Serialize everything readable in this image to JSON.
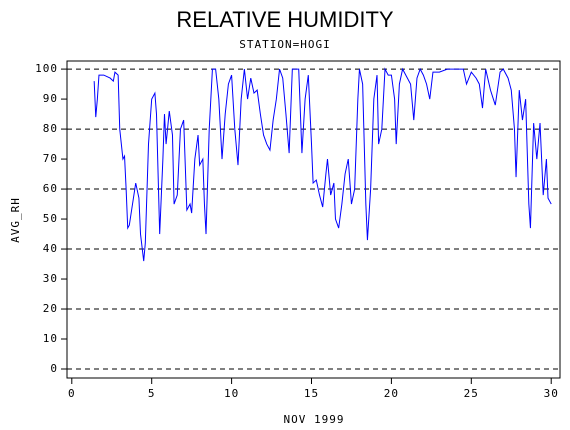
{
  "chart_data": {
    "type": "line",
    "title": "RELATIVE HUMIDITY",
    "subtitle": "STATION=HOGI",
    "x_label": "NOV 1999",
    "y_label": "AVG_RH",
    "xlim": [
      -0.3,
      30.55
    ],
    "ylim": [
      -3,
      102.7
    ],
    "xticks": [
      0,
      5,
      10,
      15,
      20,
      25,
      30
    ],
    "yticks": [
      0,
      10,
      20,
      30,
      40,
      50,
      60,
      70,
      80,
      90,
      100
    ],
    "reference_lines": [
      0,
      20,
      40,
      60,
      80,
      100
    ],
    "x": [
      1.4,
      1.5,
      1.6,
      1.7,
      2.0,
      2.4,
      2.6,
      2.7,
      2.9,
      3.0,
      3.2,
      3.3,
      3.4,
      3.5,
      3.6,
      3.8,
      4.0,
      4.2,
      4.3,
      4.5,
      4.6,
      4.8,
      5.0,
      5.2,
      5.3,
      5.5,
      5.7,
      5.8,
      5.9,
      6.1,
      6.3,
      6.4,
      6.6,
      6.8,
      7.0,
      7.2,
      7.4,
      7.5,
      7.7,
      7.9,
      8.0,
      8.2,
      8.3,
      8.4,
      8.6,
      8.8,
      9.0,
      9.2,
      9.4,
      9.6,
      9.8,
      10.0,
      10.2,
      10.4,
      10.6,
      10.8,
      11.0,
      11.2,
      11.4,
      11.6,
      11.8,
      12.0,
      12.2,
      12.4,
      12.6,
      12.8,
      13.0,
      13.2,
      13.4,
      13.6,
      13.8,
      14.0,
      14.2,
      14.4,
      14.6,
      14.8,
      15.0,
      15.1,
      15.3,
      15.5,
      15.7,
      15.9,
      16.0,
      16.2,
      16.4,
      16.5,
      16.7,
      16.9,
      17.1,
      17.3,
      17.5,
      17.7,
      17.9,
      18.0,
      18.2,
      18.4,
      18.5,
      18.7,
      18.9,
      19.1,
      19.2,
      19.4,
      19.6,
      19.8,
      20.0,
      20.2,
      20.3,
      20.5,
      20.7,
      21.0,
      21.2,
      21.4,
      21.6,
      21.8,
      22.0,
      22.2,
      22.4,
      22.6,
      23.0,
      23.5,
      24.0,
      24.5,
      24.7,
      25.0,
      25.3,
      25.5,
      25.7,
      25.9,
      26.2,
      26.5,
      26.8,
      27.0,
      27.3,
      27.5,
      27.7,
      27.8,
      28.0,
      28.2,
      28.4,
      28.6,
      28.7,
      28.9,
      29.1,
      29.3,
      29.5,
      29.7,
      29.8,
      30.0
    ],
    "series": [
      {
        "name": "AVG_RH",
        "color": "#0000ff",
        "values": [
          96,
          84,
          90,
          98,
          98,
          97,
          96,
          99,
          98,
          80,
          70,
          71,
          60,
          47,
          48,
          55,
          62,
          57,
          45,
          36,
          42,
          75,
          90,
          92,
          85,
          45,
          70,
          85,
          75,
          86,
          78,
          55,
          58,
          80,
          83,
          53,
          55,
          52,
          70,
          78,
          68,
          70,
          55,
          45,
          80,
          100,
          100,
          90,
          70,
          85,
          95,
          98,
          80,
          68,
          90,
          100,
          90,
          97,
          92,
          93,
          85,
          78,
          75,
          73,
          83,
          90,
          100,
          97,
          85,
          72,
          100,
          100,
          100,
          72,
          90,
          98,
          75,
          62,
          63,
          58,
          54,
          65,
          70,
          58,
          62,
          50,
          47,
          55,
          65,
          70,
          55,
          60,
          90,
          100,
          95,
          55,
          43,
          60,
          90,
          98,
          75,
          80,
          100,
          98,
          98,
          90,
          75,
          95,
          100,
          97,
          95,
          83,
          97,
          100,
          98,
          95,
          90,
          99,
          99,
          100,
          100,
          100,
          95,
          99,
          97,
          95,
          87,
          100,
          93,
          88,
          99,
          100,
          97,
          93,
          80,
          64,
          93,
          83,
          90,
          55,
          47,
          82,
          70,
          82,
          58,
          70,
          57,
          55
        ]
      }
    ]
  }
}
